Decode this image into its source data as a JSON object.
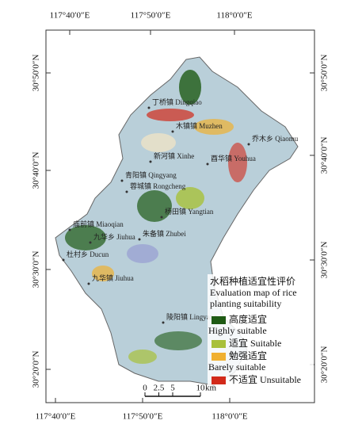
{
  "map": {
    "top_labels": [
      "117°40′0″E",
      "117°50′0″E",
      "118°0′0″E"
    ],
    "bottom_labels": [
      "117°40′0″E",
      "117°50′0″E",
      "118°0′0″E"
    ],
    "left_labels": [
      "30°50′0″N",
      "30°40′0″N",
      "30°30′0″N",
      "30°20′0″N"
    ],
    "right_labels": [
      "30°50′0″N",
      "30°40′0″N",
      "30°30′0″N",
      "30°20′0″N"
    ],
    "towns": [
      "丁桥镇 Dingqiao",
      "木镇镇 Muzhen",
      "乔木乡 Qiaomu",
      "新河镇 Xinhe",
      "酉华镇 Youhua",
      "青阳镇 Qingyang",
      "蓉城镇 Rongcheng",
      "杨田镇 Yangtian",
      "庙前镇 Miaoqian",
      "九华乡 Jiuhua",
      "朱备镇 Zhubei",
      "杜村乡 Ducun",
      "九华镇 Jiuhua",
      "陵阳镇 Lingyang"
    ],
    "legend": {
      "title": [
        "水稻种植适宜性评价",
        "Evaluation map of rice",
        "planting suitability"
      ],
      "items": [
        {
          "label": [
            "高度适宜",
            "Highly suitable"
          ],
          "color": "#1e5a14"
        },
        {
          "label": [
            "适宜 Suitable"
          ],
          "color": "#a8c03a"
        },
        {
          "label": [
            "勉强适宜",
            "Barely suitable"
          ],
          "color": "#f0b030"
        },
        {
          "label": [
            "不适宜 Unsuitable"
          ],
          "color": "#d22a1a"
        }
      ]
    },
    "scale_bar": {
      "ticks": [
        0,
        2.5,
        5,
        10
      ],
      "unit": "km"
    }
  }
}
